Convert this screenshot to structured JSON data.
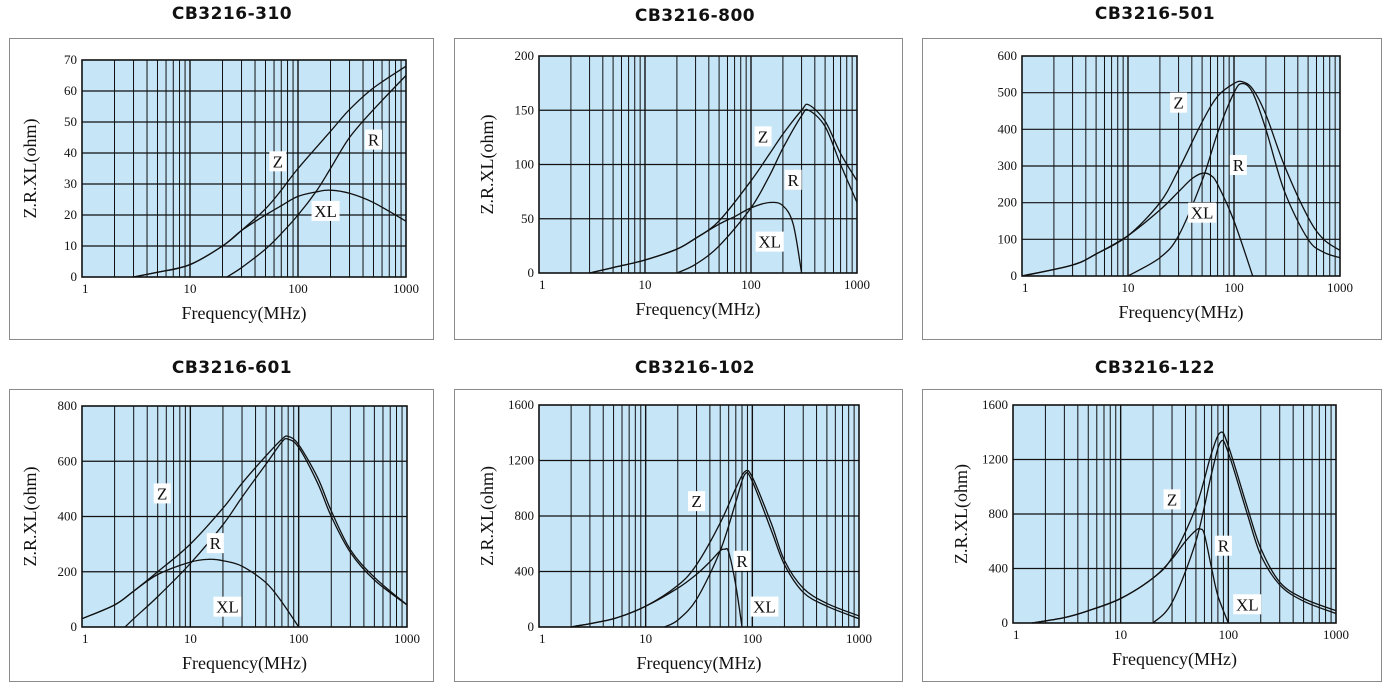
{
  "chart_data": [
    {
      "type": "line",
      "title": "CB3216-310",
      "xlabel": "Frequency(MHz)",
      "ylabel": "Z.R.XL(ohm)",
      "x_scale": "log",
      "xlim": [
        1,
        1000
      ],
      "ylim": [
        0,
        70
      ],
      "x_ticks": [
        "1",
        "10",
        "100",
        "1000"
      ],
      "y_ticks": [
        "0",
        "10",
        "20",
        "30",
        "40",
        "50",
        "60",
        "70"
      ],
      "background": "#c6e5f7",
      "series": [
        {
          "name": "Z",
          "x": [
            3,
            5,
            10,
            20,
            30,
            50,
            70,
            100,
            200,
            300,
            500,
            1000
          ],
          "y": [
            0,
            1.5,
            4,
            10,
            15,
            22,
            28,
            35,
            47,
            54,
            61,
            68
          ]
        },
        {
          "name": "R",
          "x": [
            22,
            30,
            50,
            70,
            100,
            150,
            200,
            300,
            500,
            1000
          ],
          "y": [
            0,
            3,
            9,
            14,
            20,
            28,
            35,
            45,
            54,
            65
          ]
        },
        {
          "name": "XL",
          "x": [
            3,
            5,
            10,
            20,
            30,
            50,
            70,
            100,
            150,
            200,
            300,
            500,
            1000
          ],
          "y": [
            0,
            1.5,
            4,
            10,
            15,
            20,
            23,
            26,
            27.5,
            28,
            27,
            24,
            18
          ]
        }
      ],
      "annotations": [
        "Z",
        "R",
        "XL"
      ]
    },
    {
      "type": "line",
      "title": "CB3216-800",
      "xlabel": "Frequency(MHz)",
      "ylabel": "Z.R.XL(ohm)",
      "x_scale": "log",
      "xlim": [
        1,
        1000
      ],
      "ylim": [
        0,
        200
      ],
      "x_ticks": [
        "1",
        "10",
        "100",
        "1000"
      ],
      "y_ticks": [
        "0",
        "50",
        "100",
        "150",
        "200"
      ],
      "background": "#c6e5f7",
      "series": [
        {
          "name": "Z",
          "x": [
            3,
            5,
            10,
            20,
            30,
            50,
            100,
            150,
            200,
            300,
            350,
            500,
            700,
            1000
          ],
          "y": [
            0,
            5,
            12,
            22,
            32,
            48,
            85,
            110,
            128,
            150,
            155,
            140,
            110,
            85
          ]
        },
        {
          "name": "R",
          "x": [
            20,
            30,
            50,
            100,
            150,
            200,
            300,
            350,
            500,
            700,
            1000
          ],
          "y": [
            0,
            8,
            25,
            60,
            90,
            115,
            145,
            150,
            135,
            100,
            65
          ]
        },
        {
          "name": "XL",
          "x": [
            3,
            5,
            10,
            20,
            30,
            50,
            70,
            100,
            150,
            200,
            250,
            300
          ],
          "y": [
            0,
            5,
            12,
            22,
            32,
            45,
            52,
            60,
            65,
            62,
            45,
            0
          ]
        }
      ],
      "annotations": [
        "Z",
        "R",
        "XL"
      ]
    },
    {
      "type": "line",
      "title": "CB3216-501",
      "xlabel": "Frequency(MHz)",
      "ylabel": "",
      "x_scale": "log",
      "xlim": [
        1,
        1000
      ],
      "ylim": [
        0,
        600
      ],
      "x_ticks": [
        "1",
        "10",
        "100",
        "1000"
      ],
      "y_ticks": [
        "0",
        "100",
        "200",
        "300",
        "400",
        "500",
        "600"
      ],
      "background": "#c6e5f7",
      "series": [
        {
          "name": "Z",
          "x": [
            1,
            3,
            5,
            10,
            20,
            30,
            50,
            70,
            100,
            120,
            150,
            200,
            300,
            500,
            700,
            1000
          ],
          "y": [
            0,
            30,
            60,
            110,
            200,
            290,
            420,
            490,
            525,
            530,
            510,
            440,
            300,
            160,
            100,
            70
          ]
        },
        {
          "name": "R",
          "x": [
            10,
            20,
            30,
            50,
            70,
            100,
            120,
            150,
            200,
            300,
            500,
            700,
            1000
          ],
          "y": [
            0,
            50,
            110,
            260,
            390,
            500,
            525,
            500,
            400,
            230,
            100,
            65,
            50
          ]
        },
        {
          "name": "XL",
          "x": [
            1,
            3,
            5,
            10,
            20,
            30,
            40,
            50,
            60,
            70,
            100,
            150
          ],
          "y": [
            0,
            30,
            60,
            110,
            180,
            230,
            265,
            280,
            275,
            250,
            150,
            0
          ]
        }
      ],
      "annotations": [
        "Z",
        "R",
        "XL"
      ]
    },
    {
      "type": "line",
      "title": "CB3216-601",
      "xlabel": "Frequency(MHz)",
      "ylabel": "Z.R.XL(ohm)",
      "x_scale": "log",
      "xlim": [
        1,
        1000
      ],
      "ylim": [
        0,
        800
      ],
      "x_ticks": [
        "1",
        "10",
        "100",
        "1000"
      ],
      "y_ticks": [
        "0",
        "200",
        "400",
        "600",
        "800"
      ],
      "background": "#c6e5f7",
      "series": [
        {
          "name": "Z",
          "x": [
            1,
            2,
            3,
            5,
            10,
            20,
            30,
            50,
            70,
            80,
            100,
            150,
            200,
            300,
            500,
            1000
          ],
          "y": [
            30,
            80,
            130,
            200,
            300,
            430,
            520,
            620,
            680,
            690,
            660,
            540,
            420,
            280,
            180,
            80
          ]
        },
        {
          "name": "R",
          "x": [
            2.5,
            3,
            5,
            10,
            20,
            30,
            50,
            70,
            80,
            100,
            150,
            200,
            300,
            500,
            1000
          ],
          "y": [
            0,
            30,
            110,
            230,
            370,
            470,
            590,
            670,
            680,
            650,
            520,
            400,
            270,
            170,
            80
          ]
        },
        {
          "name": "XL",
          "x": [
            1,
            2,
            3,
            5,
            10,
            15,
            20,
            30,
            50,
            70,
            100
          ],
          "y": [
            30,
            80,
            130,
            190,
            235,
            245,
            240,
            220,
            160,
            90,
            0
          ]
        }
      ],
      "annotations": [
        "Z",
        "R",
        "XL"
      ]
    },
    {
      "type": "line",
      "title": "CB3216-102",
      "xlabel": "Frequency(MHz)",
      "ylabel": "Z.R.XL(ohm)",
      "x_scale": "log",
      "xlim": [
        1,
        1000
      ],
      "ylim": [
        0,
        1600
      ],
      "x_ticks": [
        "1",
        "10",
        "100",
        "1000"
      ],
      "y_ticks": [
        "0",
        "400",
        "800",
        "1200",
        "1600"
      ],
      "background": "#c6e5f7",
      "series": [
        {
          "name": "Z",
          "x": [
            2,
            5,
            10,
            20,
            30,
            50,
            70,
            85,
            100,
            150,
            200,
            300,
            500,
            1000
          ],
          "y": [
            0,
            60,
            150,
            300,
            450,
            750,
            1000,
            1120,
            1080,
            750,
            480,
            280,
            170,
            80
          ]
        },
        {
          "name": "R",
          "x": [
            15,
            20,
            30,
            50,
            70,
            85,
            100,
            150,
            200,
            300,
            500,
            1000
          ],
          "y": [
            0,
            50,
            200,
            550,
            900,
            1100,
            1050,
            700,
            450,
            250,
            150,
            60
          ]
        },
        {
          "name": "XL",
          "x": [
            2,
            5,
            10,
            20,
            30,
            40,
            50,
            55,
            60,
            70,
            80
          ],
          "y": [
            0,
            60,
            150,
            280,
            380,
            470,
            550,
            560,
            540,
            300,
            0
          ]
        }
      ],
      "annotations": [
        "Z",
        "R",
        "XL"
      ]
    },
    {
      "type": "line",
      "title": "CB3216-122",
      "xlabel": "Frequency(MHz)",
      "ylabel": "Z.R.XL(ohm)",
      "x_scale": "log",
      "xlim": [
        1,
        1000
      ],
      "ylim": [
        0,
        1600
      ],
      "x_ticks": [
        "1",
        "10",
        "100",
        "1000"
      ],
      "y_ticks": [
        "0",
        "400",
        "800",
        "1200",
        "1600"
      ],
      "background": "#c6e5f7",
      "series": [
        {
          "name": "Z",
          "x": [
            1.5,
            3,
            5,
            10,
            20,
            30,
            50,
            70,
            85,
            100,
            150,
            200,
            300,
            500,
            1000
          ],
          "y": [
            0,
            40,
            90,
            180,
            330,
            480,
            850,
            1250,
            1400,
            1300,
            850,
            550,
            300,
            180,
            90
          ]
        },
        {
          "name": "R",
          "x": [
            20,
            30,
            50,
            70,
            85,
            100,
            150,
            200,
            300,
            500,
            1000
          ],
          "y": [
            0,
            150,
            600,
            1100,
            1330,
            1250,
            800,
            500,
            280,
            160,
            70
          ]
        },
        {
          "name": "XL",
          "x": [
            1.5,
            3,
            5,
            10,
            20,
            30,
            40,
            50,
            55,
            60,
            70,
            80,
            100
          ],
          "y": [
            0,
            40,
            90,
            180,
            330,
            470,
            600,
            680,
            690,
            650,
            400,
            200,
            0
          ]
        }
      ],
      "annotations": [
        "Z",
        "R",
        "XL"
      ]
    }
  ]
}
